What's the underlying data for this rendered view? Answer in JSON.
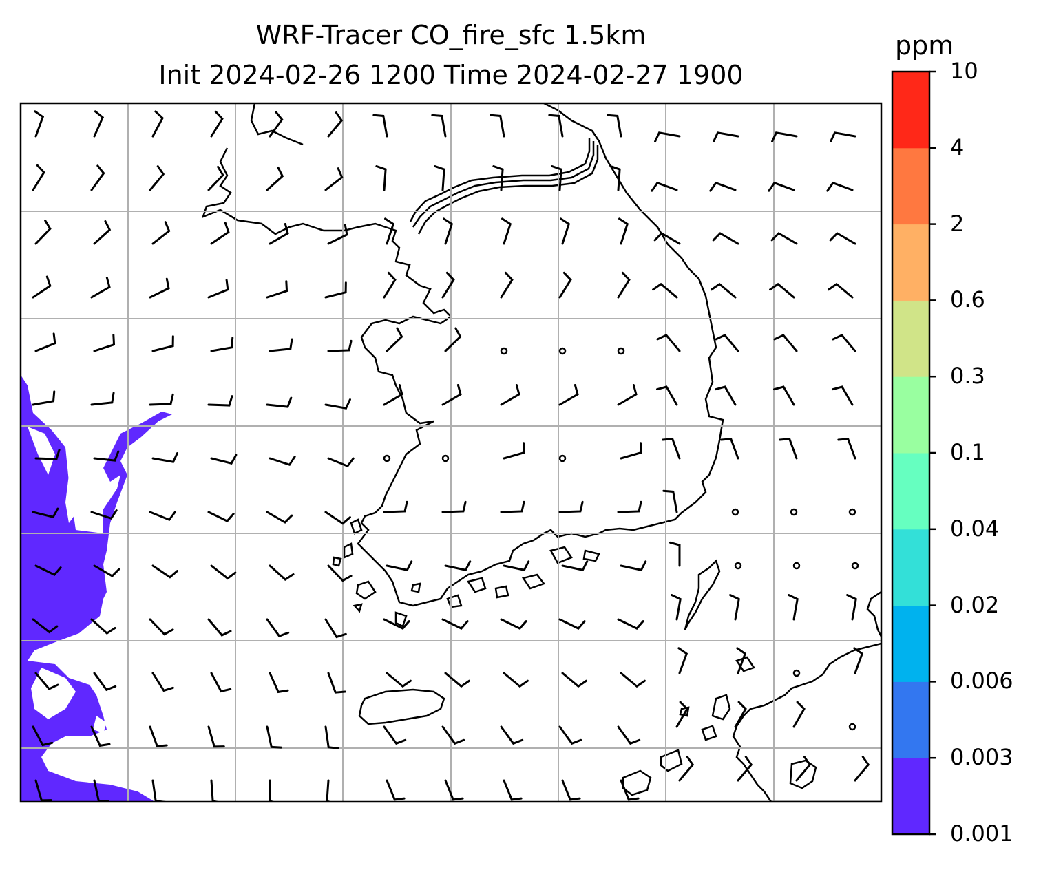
{
  "title_line1": "WRF-Tracer CO_fire_sfc 1.5km",
  "title_line2": "Init 2024-02-26 1200 Time 2024-02-27 1900",
  "colorbar": {
    "unit": "ppm",
    "tick_labels": [
      "0.001",
      "0.003",
      "0.006",
      "0.02",
      "0.04",
      "0.1",
      "0.3",
      "0.6",
      "2",
      "4",
      "10"
    ],
    "colors": [
      "#6028ff",
      "#3377f0",
      "#00b2ee",
      "#33e0d8",
      "#66ffc0",
      "#99ffa0",
      "#d0e488",
      "#ffb064",
      "#ff7840",
      "#ff2818"
    ]
  },
  "map": {
    "gridline_color": "#b0b0b0",
    "coast_color": "#000000",
    "fill_color": "#6028ff",
    "wind_barbs": "wind-barb-icon"
  }
}
